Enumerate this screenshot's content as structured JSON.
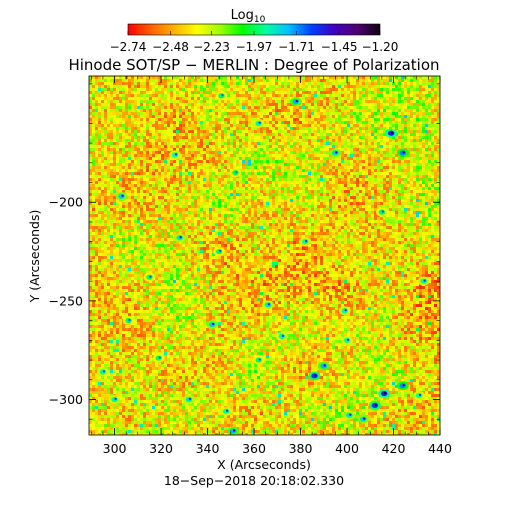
{
  "chart_data": {
    "type": "heatmap",
    "title": "Hinode SOT/SP − MERLIN : Degree of Polarization",
    "xlabel": "X (Arcseconds)",
    "ylabel": "Y (Arcseconds)",
    "timestamp": "18−Sep−2018 20:18:02.330",
    "xlim": [
      289,
      440
    ],
    "ylim": [
      -318,
      -136
    ],
    "xticks": [
      {
        "value": 300,
        "label": "300"
      },
      {
        "value": 320,
        "label": "320"
      },
      {
        "value": 340,
        "label": "340"
      },
      {
        "value": 360,
        "label": "360"
      },
      {
        "value": 380,
        "label": "380"
      },
      {
        "value": 400,
        "label": "400"
      },
      {
        "value": 420,
        "label": "420"
      },
      {
        "value": 440,
        "label": "440"
      }
    ],
    "yticks": [
      {
        "value": -200,
        "label": "−200"
      },
      {
        "value": -250,
        "label": "−250"
      },
      {
        "value": -300,
        "label": "−300"
      }
    ],
    "colorbar": {
      "label_main": "Log",
      "label_sub": "10",
      "range": [
        -2.74,
        -1.2
      ],
      "ticks": [
        {
          "value": -2.74,
          "label": "−2.74"
        },
        {
          "value": -2.48,
          "label": "−2.48"
        },
        {
          "value": -2.23,
          "label": "−2.23"
        },
        {
          "value": -1.97,
          "label": "−1.97"
        },
        {
          "value": -1.71,
          "label": "−1.71"
        },
        {
          "value": -1.45,
          "label": "−1.45"
        },
        {
          "value": -1.2,
          "label": "−1.20"
        }
      ],
      "colormap": [
        "#ff0000",
        "#ff6000",
        "#ffb000",
        "#ffff00",
        "#a0ff00",
        "#00ff00",
        "#00ffa0",
        "#00c0ff",
        "#0040ff",
        "#4000c0",
        "#500070",
        "#100010"
      ]
    },
    "features": [
      {
        "x": 303,
        "y": -197,
        "value": -1.8
      },
      {
        "x": 326,
        "y": -176,
        "value": -1.9
      },
      {
        "x": 328,
        "y": -218,
        "value": -1.85
      },
      {
        "x": 345,
        "y": -225,
        "value": -1.95
      },
      {
        "x": 352,
        "y": -185,
        "value": -2.0
      },
      {
        "x": 362,
        "y": -160,
        "value": -1.9
      },
      {
        "x": 378,
        "y": -149,
        "value": -1.75
      },
      {
        "x": 382,
        "y": -220,
        "value": -1.9
      },
      {
        "x": 395,
        "y": -175,
        "value": -1.8
      },
      {
        "x": 399,
        "y": -255,
        "value": -1.9
      },
      {
        "x": 419,
        "y": -165,
        "value": -1.55
      },
      {
        "x": 424,
        "y": -175,
        "value": -1.7
      },
      {
        "x": 415,
        "y": -205,
        "value": -1.95
      },
      {
        "x": 315,
        "y": -238,
        "value": -1.95
      },
      {
        "x": 342,
        "y": -262,
        "value": -1.8
      },
      {
        "x": 366,
        "y": -252,
        "value": -1.85
      },
      {
        "x": 372,
        "y": -268,
        "value": -1.9
      },
      {
        "x": 386,
        "y": -288,
        "value": -1.6
      },
      {
        "x": 390,
        "y": -283,
        "value": -1.75
      },
      {
        "x": 401,
        "y": -308,
        "value": -1.85
      },
      {
        "x": 416,
        "y": -297,
        "value": -1.55
      },
      {
        "x": 412,
        "y": -303,
        "value": -1.6
      },
      {
        "x": 424,
        "y": -293,
        "value": -1.7
      },
      {
        "x": 407,
        "y": -310,
        "value": -1.8
      },
      {
        "x": 431,
        "y": -298,
        "value": -1.9
      },
      {
        "x": 295,
        "y": -286,
        "value": -1.9
      },
      {
        "x": 319,
        "y": -279,
        "value": -1.95
      },
      {
        "x": 332,
        "y": -300,
        "value": -1.85
      },
      {
        "x": 348,
        "y": -306,
        "value": -1.9
      },
      {
        "x": 362,
        "y": -280,
        "value": -1.95
      },
      {
        "x": 351,
        "y": -316,
        "value": -1.75
      },
      {
        "x": 300,
        "y": -300,
        "value": -1.9
      },
      {
        "x": 306,
        "y": -260,
        "value": -1.95
      },
      {
        "x": 433,
        "y": -240,
        "value": -1.9
      },
      {
        "x": 400,
        "y": -270,
        "value": -1.9
      },
      {
        "x": 346,
        "y": -146,
        "value": -1.95
      }
    ]
  }
}
